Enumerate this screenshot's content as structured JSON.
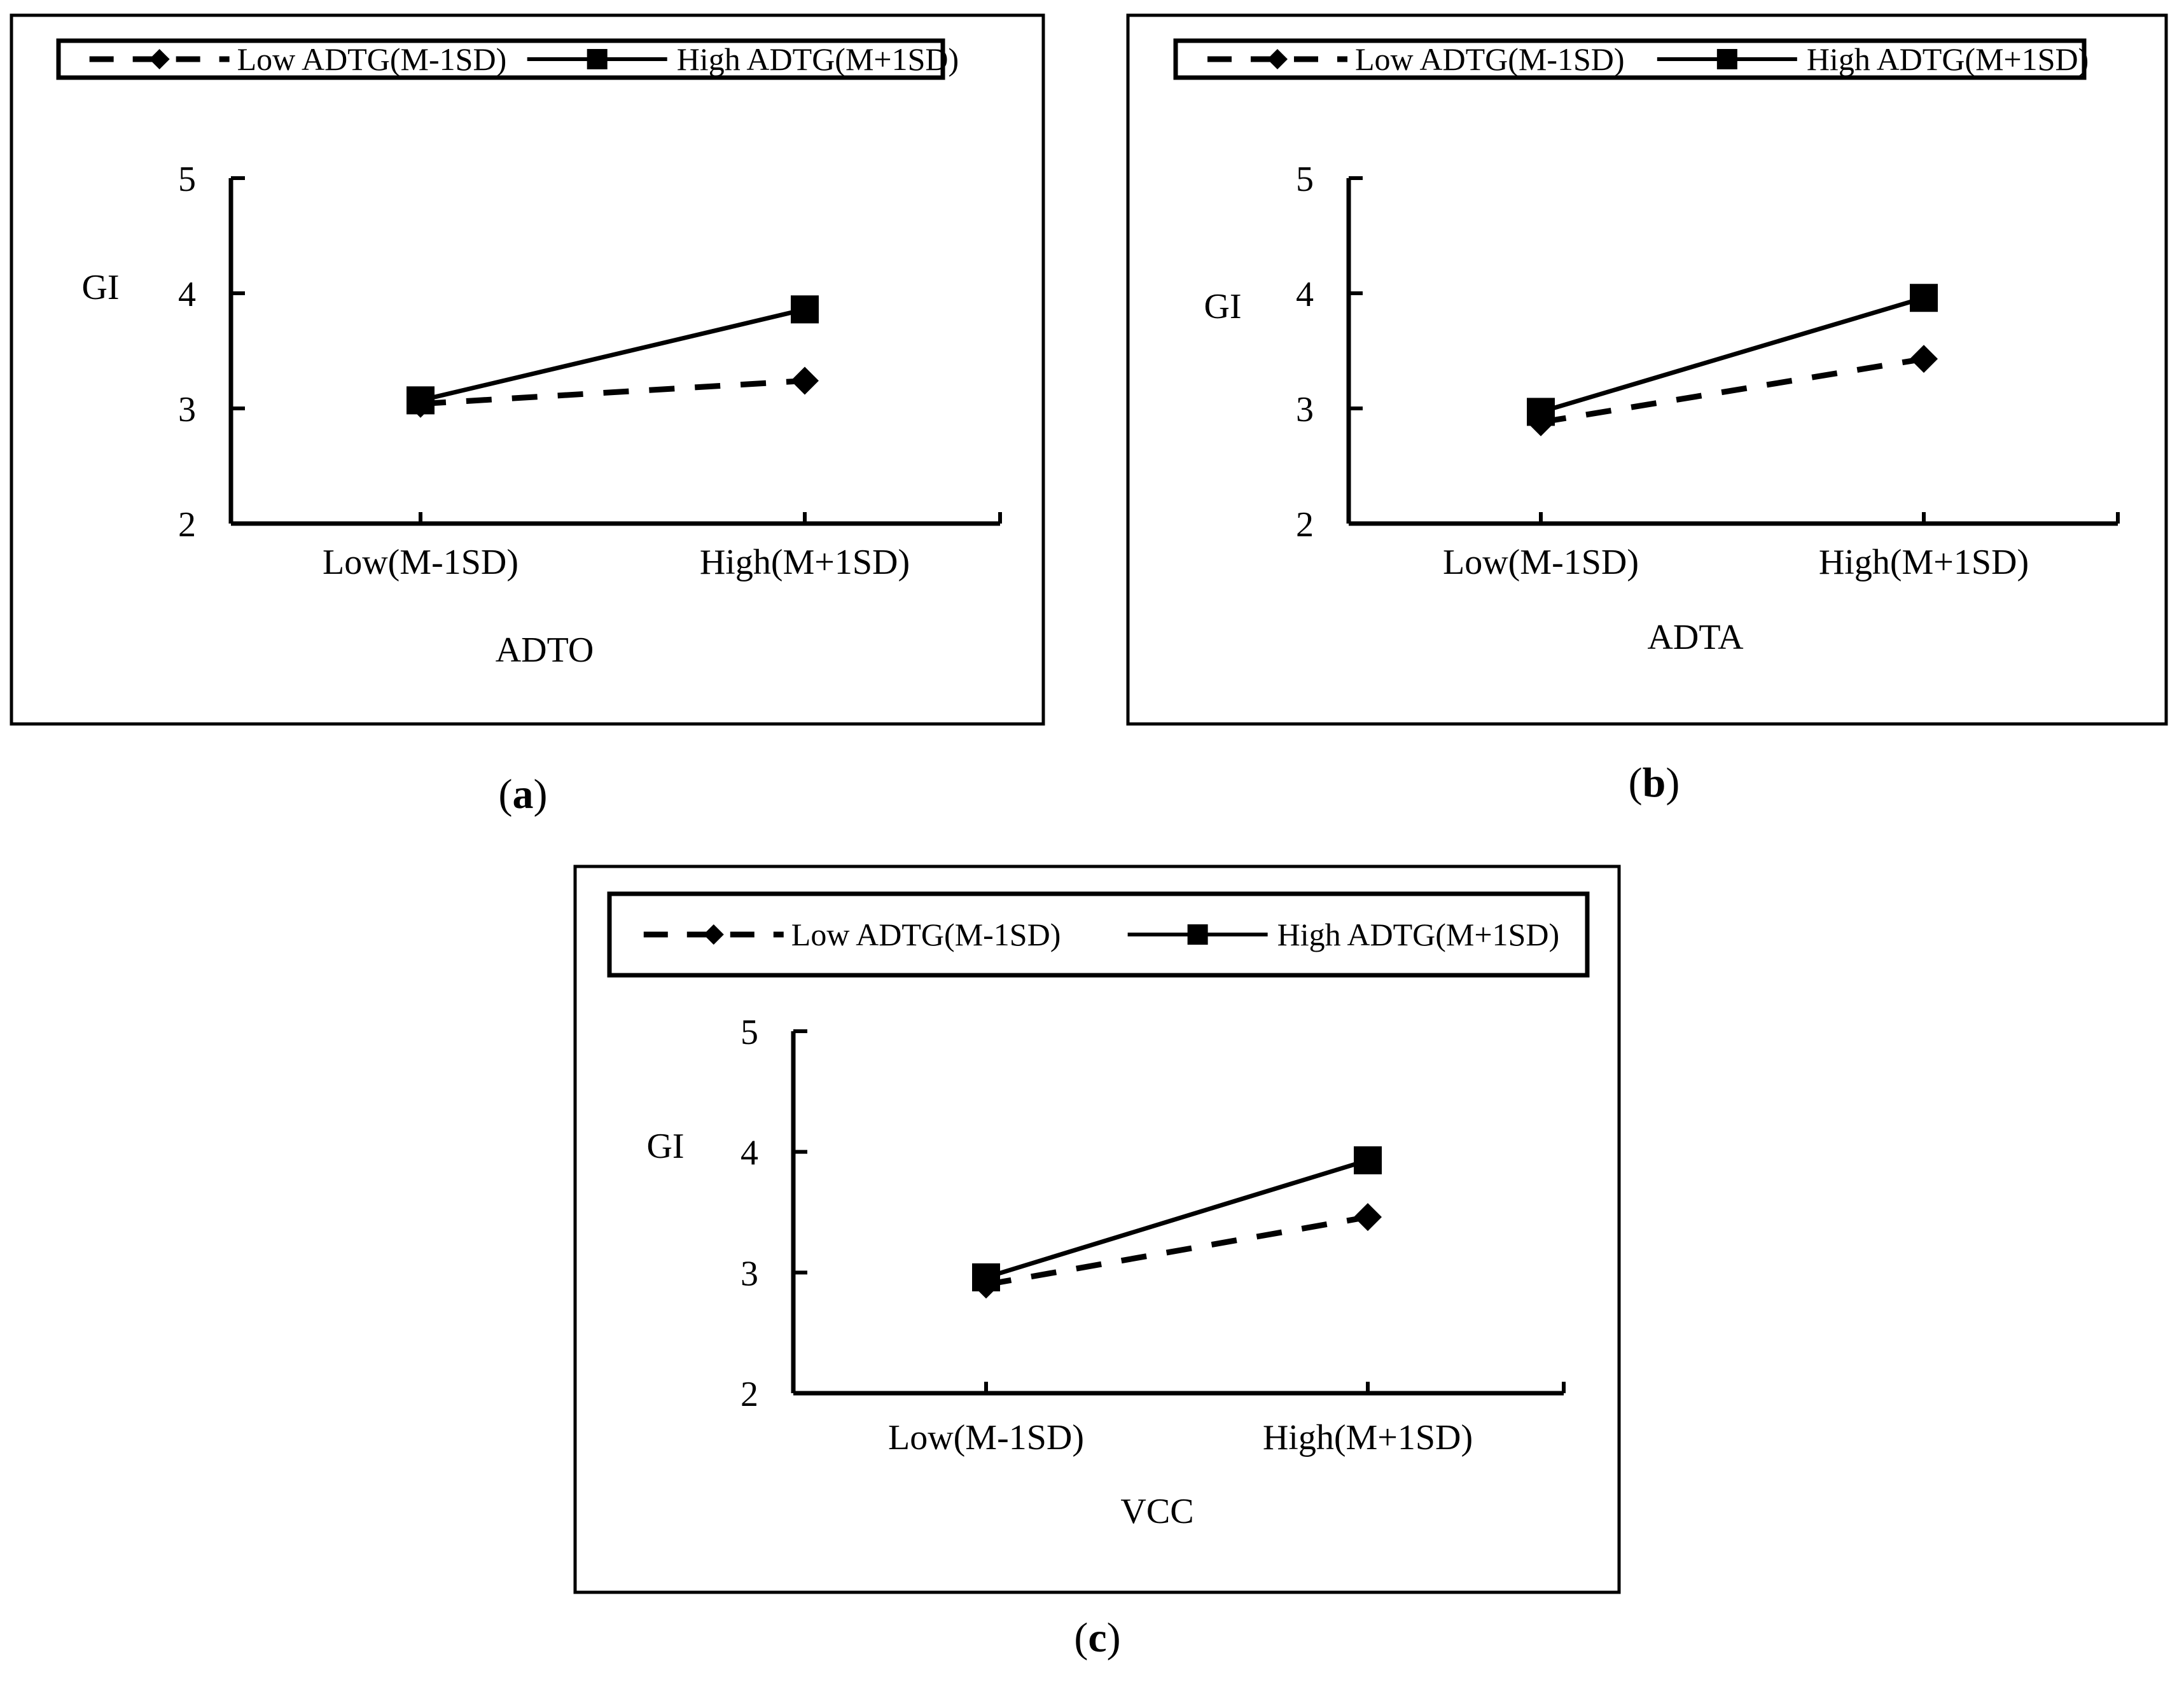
{
  "chart_data": [
    {
      "type": "line",
      "panel_label": "a",
      "xlabel": "ADTO",
      "ylabel": "GI",
      "ylim": [
        2,
        5
      ],
      "yticks": [
        2,
        3,
        4,
        5
      ],
      "categories": [
        "Low(M-1SD)",
        "High(M+1SD)"
      ],
      "series": [
        {
          "name": "Low ADTG(M-1SD)",
          "marker": "diamond",
          "dash": true,
          "values": [
            3.04,
            3.24
          ]
        },
        {
          "name": "High ADTG(M+1SD)",
          "marker": "square",
          "dash": false,
          "values": [
            3.07,
            3.86
          ]
        }
      ],
      "legend": "top"
    },
    {
      "type": "line",
      "panel_label": "b",
      "xlabel": "ADTA",
      "ylabel": "GI",
      "ylim": [
        2,
        5
      ],
      "yticks": [
        2,
        3,
        4,
        5
      ],
      "categories": [
        "Low(M-1SD)",
        "High(M+1SD)"
      ],
      "series": [
        {
          "name": "Low ADTG(M-1SD)",
          "marker": "diamond",
          "dash": true,
          "values": [
            2.88,
            3.43
          ]
        },
        {
          "name": "High ADTG(M+1SD)",
          "marker": "square",
          "dash": false,
          "values": [
            2.97,
            3.96
          ]
        }
      ],
      "legend": "top"
    },
    {
      "type": "line",
      "panel_label": "c",
      "xlabel": "VCC",
      "ylabel": "GI",
      "ylim": [
        2,
        5
      ],
      "yticks": [
        2,
        3,
        4,
        5
      ],
      "categories": [
        "Low(M-1SD)",
        "High(M+1SD)"
      ],
      "series": [
        {
          "name": "Low ADTG(M-1SD)",
          "marker": "diamond",
          "dash": true,
          "values": [
            2.9,
            3.46
          ]
        },
        {
          "name": "High ADTG(M+1SD)",
          "marker": "square",
          "dash": false,
          "values": [
            2.96,
            3.93
          ]
        }
      ],
      "legend": "top"
    }
  ]
}
